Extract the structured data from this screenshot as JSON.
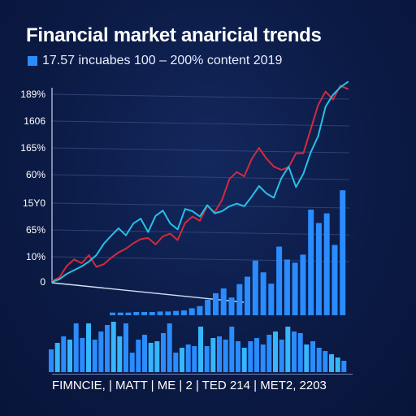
{
  "title": "Financial market anaricial trends",
  "subtitle": "17.57 incuabes 100 – 200% content 2019",
  "colors": {
    "background": "#0b1a44",
    "bar": "#2a8cff",
    "bar_highlight": "#35b6ff",
    "line_red": "#d32a3c",
    "line_cyan": "#28c0e6"
  },
  "x_caption": "FIMNCIE, | MATT | ME | 2 | TED 214 | MET2, 2203",
  "chart_data": [
    {
      "type": "line",
      "title": "Financial market anaricial trends",
      "y_tick_labels": [
        "0",
        "10%",
        "65%",
        "15Y0",
        "60%",
        "165%",
        "1606",
        "189%"
      ],
      "grid": true,
      "series": [
        {
          "color": "#d32a3c",
          "x": [
            0,
            1,
            2,
            3,
            4,
            5,
            6,
            7,
            8,
            9,
            10,
            11,
            12,
            13,
            14,
            15,
            16,
            17,
            18,
            19,
            20,
            21,
            22,
            23,
            24,
            25,
            26,
            27,
            28,
            29,
            30,
            31,
            32,
            33,
            34,
            35,
            36,
            37,
            38,
            39,
            40
          ],
          "y": [
            0.02,
            0.08,
            0.3,
            0.42,
            0.35,
            0.5,
            0.28,
            0.33,
            0.45,
            0.55,
            0.62,
            0.72,
            0.8,
            0.82,
            0.7,
            0.85,
            0.9,
            0.78,
            1.1,
            1.22,
            1.14,
            1.42,
            1.3,
            1.53,
            1.92,
            2.05,
            1.97,
            2.29,
            2.5,
            2.3,
            2.15,
            2.09,
            2.14,
            2.4,
            2.4,
            2.85,
            3.3,
            3.55,
            3.4,
            3.66,
            3.6
          ]
        },
        {
          "color": "#28c0e6",
          "x": [
            0,
            1,
            2,
            3,
            4,
            5,
            6,
            7,
            8,
            9,
            10,
            11,
            12,
            13,
            14,
            15,
            16,
            17,
            18,
            19,
            20,
            21,
            22,
            23,
            24,
            25,
            26,
            27,
            28,
            29,
            30,
            31,
            32,
            33,
            34,
            35,
            36,
            37,
            38,
            39,
            40
          ],
          "y": [
            0.0,
            0.05,
            0.15,
            0.22,
            0.29,
            0.38,
            0.5,
            0.71,
            0.86,
            1.0,
            0.87,
            1.09,
            1.18,
            0.93,
            1.23,
            1.33,
            1.09,
            0.98,
            1.36,
            1.32,
            1.22,
            1.43,
            1.28,
            1.32,
            1.41,
            1.46,
            1.41,
            1.59,
            1.79,
            1.65,
            1.57,
            1.93,
            2.15,
            1.77,
            2.02,
            2.42,
            2.72,
            3.27,
            3.49,
            3.63,
            3.73
          ]
        }
      ]
    },
    {
      "type": "bar",
      "color": "#2a8cff",
      "values": [
        0.05,
        0.05,
        0.05,
        0.06,
        0.06,
        0.06,
        0.07,
        0.07,
        0.08,
        0.09,
        0.13,
        0.17,
        0.29,
        0.41,
        0.5,
        0.33,
        0.58,
        0.72,
        1.02,
        0.8,
        0.59,
        1.28,
        1.04,
        0.98,
        1.13,
        1.97,
        1.72,
        1.9,
        1.31,
        2.33
      ]
    },
    {
      "type": "bar",
      "color": "#2a8cff",
      "values": [
        28,
        36,
        44,
        40,
        60,
        42,
        60,
        40,
        50,
        58,
        62,
        44,
        60,
        24,
        40,
        46,
        36,
        38,
        48,
        60,
        24,
        30,
        34,
        32,
        56,
        32,
        42,
        44,
        40,
        56,
        38,
        30,
        38,
        42,
        34,
        46,
        50,
        40,
        56,
        50,
        48,
        34,
        38,
        30,
        26,
        22,
        18,
        14
      ]
    }
  ]
}
